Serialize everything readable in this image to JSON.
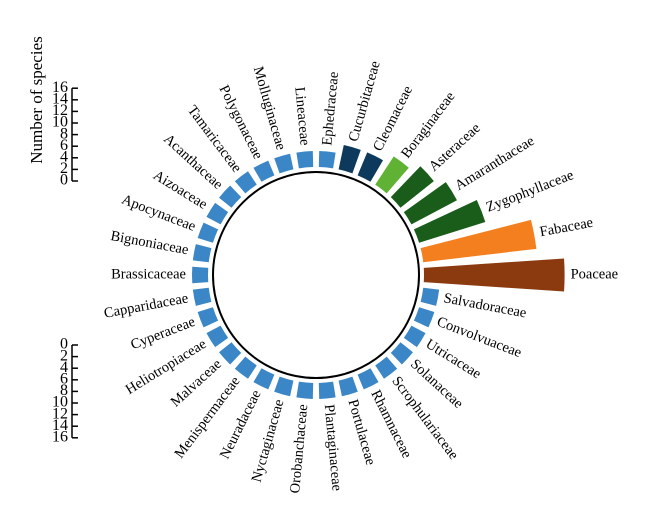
{
  "chart_data": {
    "type": "bar",
    "subtype": "circular-bar",
    "ylabel": "Number of species",
    "ylim": [
      0,
      16
    ],
    "yticks": [
      0,
      2,
      4,
      6,
      8,
      10,
      12,
      14,
      16
    ],
    "yticks_upper": [
      0,
      2,
      4,
      6,
      8,
      10,
      12,
      14,
      16
    ],
    "yticks_lower": [
      0,
      2,
      4,
      6,
      8,
      10,
      12,
      14,
      16
    ],
    "upper_tick_labels": [
      "0",
      "2",
      "4",
      "6",
      "8",
      "10",
      "12",
      "14",
      "16"
    ],
    "lower_tick_labels": [
      "0",
      "2",
      "4",
      "6",
      "8",
      "10",
      "12",
      "14",
      "16"
    ],
    "grid": false,
    "legend": "none",
    "categories": [
      "Poaceae",
      "Salvadoraceae",
      "Convolvuaceae",
      "Utricaceae",
      "Solanaceae",
      "Scrophulariaceae",
      "Rhamnaceae",
      "Portulaceae",
      "Plantaginaceae",
      "Orobanchaceae",
      "Nyctaginaceae",
      "Neuradaceae",
      "Menispermaceae",
      "Malvaceae",
      "Heliotropiaceae",
      "Cyperaceae",
      "Capparidaceae",
      "Brassicaceae",
      "Bignoniaceae",
      "Apocynaceae",
      "Aizoaceae",
      "Acanthaceae",
      "Tamaricaceae",
      "Polygonaceae",
      "Molluginaceae",
      "Lineaceae",
      "Ephedraceae",
      "Cucurbitaceae",
      "Cleomaceae",
      "Boraginaceae",
      "Asteraceae",
      "Amaranthaceae",
      "Zygophyllaceae",
      "Fabaceae"
    ],
    "values": [
      15,
      1,
      1,
      1,
      1,
      1,
      1,
      1,
      1,
      1,
      1,
      1,
      1,
      1,
      1,
      1,
      1,
      1,
      1,
      1,
      1,
      1,
      1,
      1,
      1,
      1,
      1,
      2,
      2,
      3,
      4,
      5,
      7,
      12
    ],
    "colors": [
      "#8b3a0f",
      "#3a86c6",
      "#3a86c6",
      "#3a86c6",
      "#3a86c6",
      "#3a86c6",
      "#3a86c6",
      "#3a86c6",
      "#3a86c6",
      "#3a86c6",
      "#3a86c6",
      "#3a86c6",
      "#3a86c6",
      "#3a86c6",
      "#3a86c6",
      "#3a86c6",
      "#3a86c6",
      "#3a86c6",
      "#3a86c6",
      "#3a86c6",
      "#3a86c6",
      "#3a86c6",
      "#3a86c6",
      "#3a86c6",
      "#3a86c6",
      "#3a86c6",
      "#3a86c6",
      "#0d3a5c",
      "#0d3a5c",
      "#5fb233",
      "#1a5d1a",
      "#1a5d1a",
      "#1a5d1a",
      "#f37f1f"
    ]
  }
}
